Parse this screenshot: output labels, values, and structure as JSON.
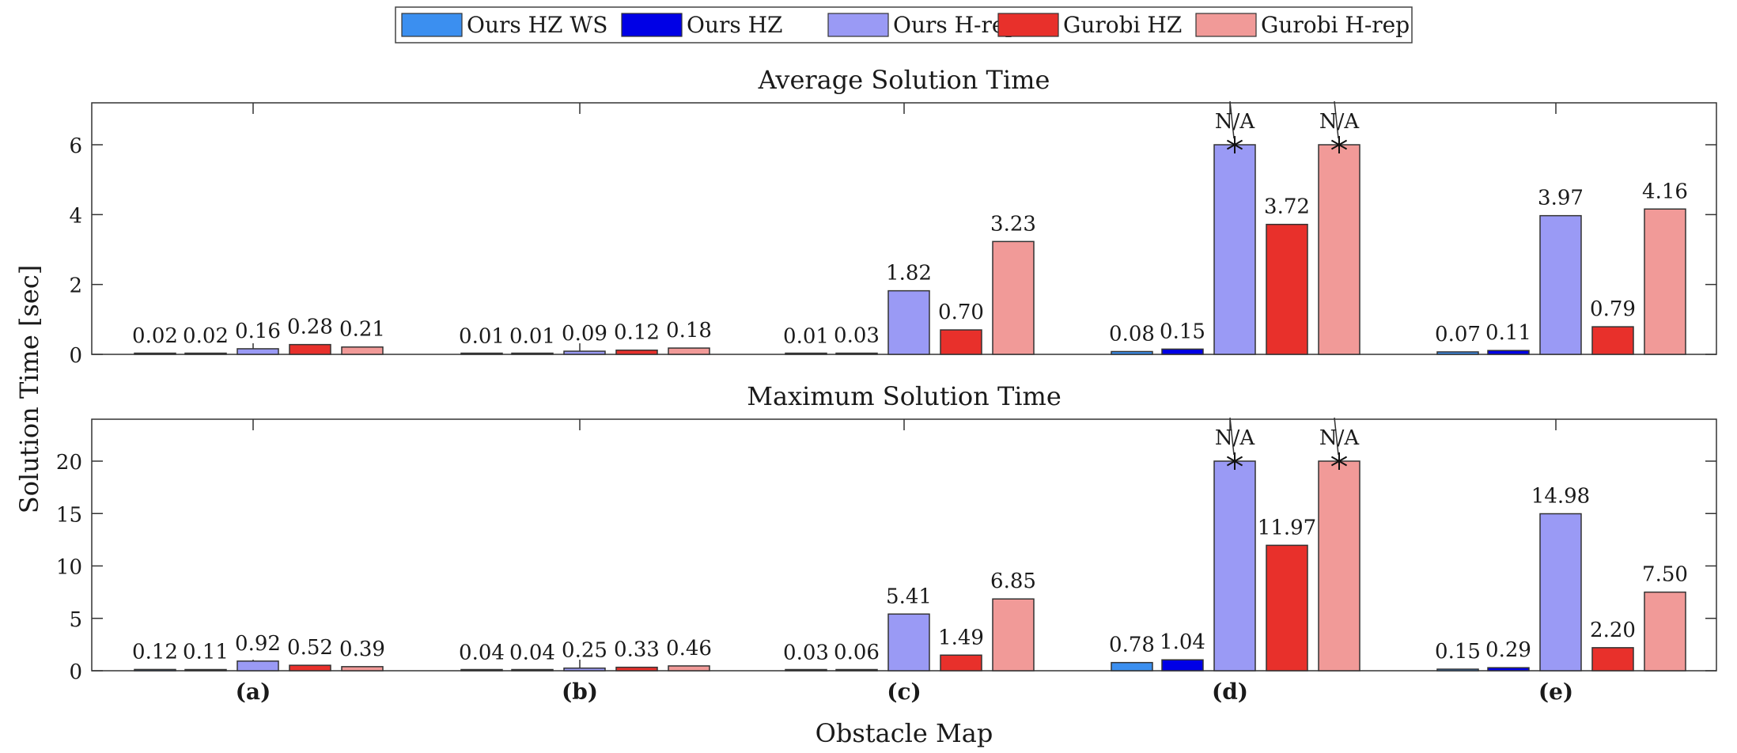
{
  "figure": {
    "ylabel": "Solution Time [sec]",
    "xlabel": "Obstacle Map"
  },
  "legend": {
    "items": [
      {
        "label": "Ours HZ WS",
        "color": "#3b8ff0"
      },
      {
        "label": "Ours HZ",
        "color": "#0000e6"
      },
      {
        "label": "Ours H-rep",
        "color": "#9a9af5"
      },
      {
        "label": "Gurobi HZ",
        "color": "#e8302b"
      },
      {
        "label": "Gurobi H-rep",
        "color": "#f19a98"
      }
    ]
  },
  "chart_data": [
    {
      "type": "bar",
      "title": "Average Solution Time",
      "categories": [
        "(a)",
        "(b)",
        "(c)",
        "(d)",
        "(e)"
      ],
      "ylim": [
        0,
        7.2
      ],
      "yticks": [
        0,
        2,
        4,
        6
      ],
      "series": [
        {
          "name": "Ours HZ WS",
          "values": [
            0.02,
            0.01,
            0.01,
            0.08,
            0.07
          ],
          "labels": [
            "0.02",
            "0.01",
            "0.01",
            "0.08",
            "0.07"
          ]
        },
        {
          "name": "Ours HZ",
          "values": [
            0.02,
            0.01,
            0.03,
            0.15,
            0.11
          ],
          "labels": [
            "0.02",
            "0.01",
            "0.03",
            "0.15",
            "0.11"
          ]
        },
        {
          "name": "Ours H-rep",
          "values": [
            0.16,
            0.09,
            1.82,
            6,
            3.97
          ],
          "labels": [
            "0.16",
            "0.09",
            "1.82",
            "N/A",
            "3.97"
          ]
        },
        {
          "name": "Gurobi HZ",
          "values": [
            0.28,
            0.12,
            0.7,
            3.72,
            0.79
          ],
          "labels": [
            "0.28",
            "0.12",
            "0.70",
            "3.72",
            "0.79"
          ]
        },
        {
          "name": "Gurobi H-rep",
          "values": [
            0.21,
            0.18,
            3.23,
            6,
            4.16
          ],
          "labels": [
            "0.21",
            "0.18",
            "3.23",
            "N/A",
            "4.16"
          ]
        }
      ],
      "na_markers": [
        {
          "series": 2,
          "category": 3
        },
        {
          "series": 4,
          "category": 3
        }
      ]
    },
    {
      "type": "bar",
      "title": "Maximum Solution Time",
      "categories": [
        "(a)",
        "(b)",
        "(c)",
        "(d)",
        "(e)"
      ],
      "ylim": [
        0,
        24
      ],
      "yticks": [
        0,
        5,
        10,
        15,
        20
      ],
      "series": [
        {
          "name": "Ours HZ WS",
          "values": [
            0.12,
            0.04,
            0.03,
            0.78,
            0.15
          ],
          "labels": [
            "0.12",
            "0.04",
            "0.03",
            "0.78",
            "0.15"
          ]
        },
        {
          "name": "Ours HZ",
          "values": [
            0.11,
            0.04,
            0.06,
            1.04,
            0.29
          ],
          "labels": [
            "0.11",
            "0.04",
            "0.06",
            "1.04",
            "0.29"
          ]
        },
        {
          "name": "Ours H-rep",
          "values": [
            0.92,
            0.25,
            5.41,
            20,
            14.98
          ],
          "labels": [
            "0.92",
            "0.25",
            "5.41",
            "N/A",
            "14.98"
          ]
        },
        {
          "name": "Gurobi HZ",
          "values": [
            0.52,
            0.33,
            1.49,
            11.97,
            2.2
          ],
          "labels": [
            "0.52",
            "0.33",
            "1.49",
            "11.97",
            "2.20"
          ]
        },
        {
          "name": "Gurobi H-rep",
          "values": [
            0.39,
            0.46,
            6.85,
            20,
            7.5
          ],
          "labels": [
            "0.39",
            "0.46",
            "6.85",
            "N/A",
            "7.50"
          ]
        }
      ],
      "na_markers": [
        {
          "series": 2,
          "category": 3
        },
        {
          "series": 4,
          "category": 3
        }
      ]
    }
  ]
}
